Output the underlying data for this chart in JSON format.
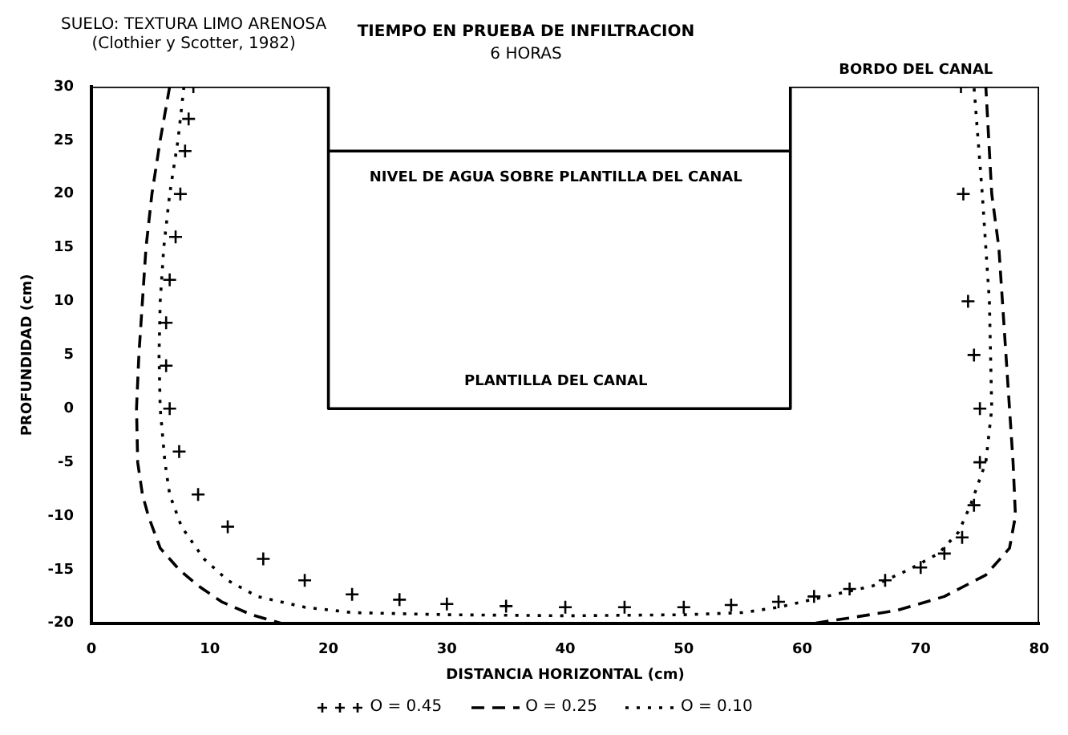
{
  "chart_data": {
    "type": "line",
    "title": "TIEMPO EN PRUEBA DE INFILTRACION",
    "subtitle": "6 HORAS",
    "xlabel": "DISTANCIA HORIZONTAL (cm)",
    "ylabel": "PROFUNDIDAD (cm)",
    "xlim": [
      0,
      80
    ],
    "xticks": [
      0,
      10,
      20,
      30,
      40,
      50,
      60,
      70,
      80
    ],
    "ylim": [
      -20,
      30
    ],
    "yticks": [
      -20,
      -15,
      -10,
      -5,
      0,
      5,
      10,
      15,
      20,
      25,
      30
    ],
    "grid": false,
    "legend": "bottom",
    "annotations": [
      "SUELO: TEXTURA LIMO ARENOSA",
      "(Clothier y Scotter, 1982)",
      "NIVEL DE AGUA SOBRE PLANTILLA DEL CANAL",
      "PLANTILLA DEL CANAL",
      "BORDO DEL CANAL"
    ],
    "series": [
      {
        "name": "O = 0.45",
        "type": "scatter",
        "marker": "cross",
        "color": "#000000",
        "x": [
          8.6,
          8.2,
          7.9,
          7.5,
          7.1,
          6.6,
          6.3,
          6.3,
          6.6,
          7.4,
          9,
          11.5,
          14.5,
          18,
          22,
          26,
          30,
          35,
          40,
          45,
          50,
          54,
          58,
          61,
          64,
          67,
          70,
          72,
          73.5,
          74.5,
          75,
          75,
          74.5,
          74,
          73.6,
          73.4
        ],
        "values": [
          30,
          27,
          24,
          20,
          16,
          12,
          8,
          4,
          0,
          -4,
          -8,
          -11,
          -14,
          -16,
          -17.3,
          -17.8,
          -18.2,
          -18.4,
          -18.5,
          -18.5,
          -18.5,
          -18.3,
          -18,
          -17.5,
          -16.8,
          -16,
          -14.8,
          -13.5,
          -12,
          -9,
          -5,
          0,
          5,
          10,
          20,
          30
        ]
      },
      {
        "name": "O = 0.25",
        "type": "line",
        "line_style": "dashed",
        "marker": "none",
        "color": "#000000",
        "x": [
          6.6,
          5.8,
          5.1,
          4.6,
          4.3,
          4,
          3.8,
          3.9,
          4.3,
          4.8,
          5.8,
          7.4,
          9,
          11,
          13.5,
          16,
          61,
          64,
          68,
          72,
          75.5,
          77.5,
          78,
          77.8,
          77.2,
          76.6,
          76,
          75.5
        ],
        "values": [
          30,
          25,
          20,
          15,
          10,
          5,
          0,
          -5,
          -8,
          -10,
          -13,
          -15,
          -16.5,
          -18,
          -19.2,
          -20,
          -20,
          -19.5,
          -18.8,
          -17.5,
          -15.5,
          -13,
          -10,
          -5,
          5,
          15,
          20,
          30
        ]
      },
      {
        "name": "O = 0.10",
        "type": "line",
        "line_style": "dotted",
        "marker": "none",
        "color": "#000000",
        "x": [
          7.8,
          7.3,
          6.6,
          6.1,
          5.8,
          5.7,
          5.8,
          6.2,
          6.6,
          7.6,
          9.5,
          11.5,
          14,
          18,
          22,
          30,
          40,
          50,
          55,
          58,
          62,
          66,
          69,
          71.5,
          73.2,
          74.2,
          75.5,
          76,
          75.8,
          75.2,
          74.5
        ],
        "values": [
          30,
          25,
          20,
          15,
          10,
          5,
          0,
          -5,
          -8,
          -11,
          -14,
          -16,
          -17.5,
          -18.5,
          -19,
          -19.2,
          -19.3,
          -19.2,
          -19,
          -18.5,
          -17.5,
          -16.5,
          -15,
          -13.5,
          -11.5,
          -9,
          -5,
          0,
          10,
          20,
          30
        ]
      },
      {
        "type": "line",
        "line_style": "solid",
        "marker": "none",
        "color": "#000000",
        "x": [
          0,
          20,
          20,
          59,
          59,
          80,
          80
        ],
        "values": [
          30,
          30,
          0,
          0,
          30,
          30,
          -20
        ]
      },
      {
        "type": "line",
        "line_style": "solid",
        "marker": "none",
        "color": "#000000",
        "x": [
          20,
          59
        ],
        "values": [
          24,
          24
        ]
      }
    ]
  }
}
